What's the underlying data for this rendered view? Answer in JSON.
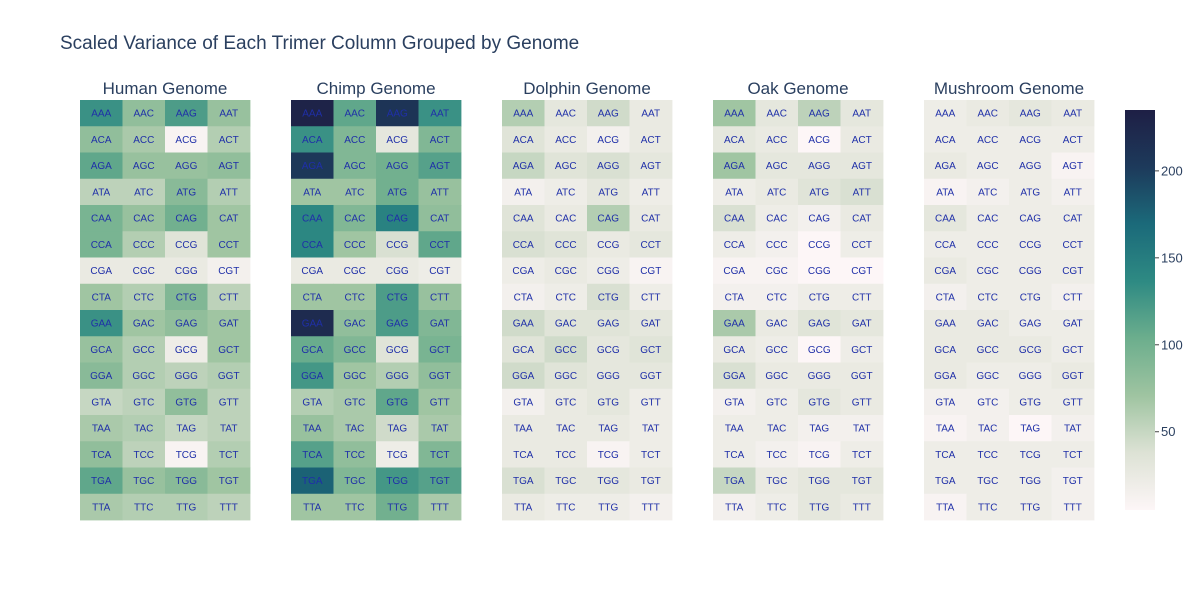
{
  "chart_data": {
    "type": "heatmap",
    "title": "Scaled Variance of Each Trimer Column Grouped by Genome",
    "colorscale": [
      "#fdf6f7",
      "#dde2d5",
      "#9fc4a1",
      "#6cae8d",
      "#2e8a83",
      "#1b6a7a",
      "#1d3a5b",
      "#1e1f45"
    ],
    "zrange": [
      5,
      235
    ],
    "colorbar_ticks": [
      50,
      100,
      150,
      200
    ],
    "columns": [
      "A",
      "C",
      "G",
      "T"
    ],
    "rows": [
      "AA",
      "AC",
      "AG",
      "AT",
      "CA",
      "CC",
      "CG",
      "CT",
      "GA",
      "GC",
      "GG",
      "GT",
      "TA",
      "TC",
      "TG",
      "TT"
    ],
    "panels": [
      {
        "title": "Human Genome",
        "labels": [
          [
            "AAA",
            "AAC",
            "AAG",
            "AAT"
          ],
          [
            "ACA",
            "ACC",
            "ACG",
            "ACT"
          ],
          [
            "AGA",
            "AGC",
            "AGG",
            "AGT"
          ],
          [
            "ATA",
            "ATC",
            "ATG",
            "ATT"
          ],
          [
            "CAA",
            "CAC",
            "CAG",
            "CAT"
          ],
          [
            "CCA",
            "CCC",
            "CCG",
            "CCT"
          ],
          [
            "CGA",
            "CGC",
            "CGG",
            "CGT"
          ],
          [
            "CTA",
            "CTC",
            "CTG",
            "CTT"
          ],
          [
            "GAA",
            "GAC",
            "GAG",
            "GAT"
          ],
          [
            "GCA",
            "GCC",
            "GCG",
            "GCT"
          ],
          [
            "GGA",
            "GGC",
            "GGG",
            "GGT"
          ],
          [
            "GTA",
            "GTC",
            "GTG",
            "GTT"
          ],
          [
            "TAA",
            "TAC",
            "TAG",
            "TAT"
          ],
          [
            "TCA",
            "TCC",
            "TCG",
            "TCT"
          ],
          [
            "TGA",
            "TGC",
            "TGG",
            "TGT"
          ],
          [
            "TTA",
            "TTC",
            "TTG",
            "TTT"
          ]
        ],
        "values": [
          [
            130,
            80,
            120,
            75
          ],
          [
            80,
            65,
            10,
            60
          ],
          [
            110,
            75,
            75,
            80
          ],
          [
            55,
            55,
            85,
            60
          ],
          [
            95,
            75,
            100,
            70
          ],
          [
            95,
            60,
            35,
            70
          ],
          [
            25,
            25,
            25,
            15
          ],
          [
            70,
            60,
            90,
            55
          ],
          [
            130,
            70,
            80,
            70
          ],
          [
            75,
            60,
            20,
            70
          ],
          [
            85,
            60,
            55,
            60
          ],
          [
            50,
            55,
            80,
            55
          ],
          [
            65,
            60,
            50,
            55
          ],
          [
            80,
            55,
            10,
            60
          ],
          [
            110,
            75,
            85,
            70
          ],
          [
            65,
            60,
            60,
            55
          ]
        ]
      },
      {
        "title": "Chimp Genome",
        "labels": [
          [
            "AAA",
            "AAC",
            "AAG",
            "AAT"
          ],
          [
            "ACA",
            "ACC",
            "ACG",
            "ACT"
          ],
          [
            "AGA",
            "AGC",
            "AGG",
            "AGT"
          ],
          [
            "ATA",
            "ATC",
            "ATG",
            "ATT"
          ],
          [
            "CAA",
            "CAC",
            "CAG",
            "CAT"
          ],
          [
            "CCA",
            "CCC",
            "CCG",
            "CCT"
          ],
          [
            "CGA",
            "CGC",
            "CGG",
            "CGT"
          ],
          [
            "CTA",
            "CTC",
            "CTG",
            "CTT"
          ],
          [
            "GAA",
            "GAC",
            "GAG",
            "GAT"
          ],
          [
            "GCA",
            "GCC",
            "GCG",
            "GCT"
          ],
          [
            "GGA",
            "GGC",
            "GGG",
            "GGT"
          ],
          [
            "GTA",
            "GTC",
            "GTG",
            "GTT"
          ],
          [
            "TAA",
            "TAC",
            "TAG",
            "TAT"
          ],
          [
            "TCA",
            "TCC",
            "TCG",
            "TCT"
          ],
          [
            "TGA",
            "TGC",
            "TGG",
            "TGT"
          ],
          [
            "TTA",
            "TTC",
            "TTG",
            "TTT"
          ]
        ],
        "values": [
          [
            230,
            110,
            210,
            130
          ],
          [
            130,
            90,
            30,
            90
          ],
          [
            205,
            90,
            100,
            115
          ],
          [
            70,
            70,
            100,
            75
          ],
          [
            140,
            90,
            145,
            80
          ],
          [
            140,
            70,
            40,
            110
          ],
          [
            25,
            25,
            25,
            20
          ],
          [
            70,
            70,
            120,
            75
          ],
          [
            220,
            80,
            120,
            90
          ],
          [
            105,
            90,
            35,
            95
          ],
          [
            125,
            70,
            60,
            80
          ],
          [
            60,
            65,
            110,
            70
          ],
          [
            75,
            65,
            45,
            65
          ],
          [
            115,
            80,
            20,
            90
          ],
          [
            175,
            90,
            125,
            115
          ],
          [
            70,
            70,
            100,
            65
          ]
        ]
      },
      {
        "title": "Dolphin Genome",
        "labels": [
          [
            "AAA",
            "AAC",
            "AAG",
            "AAT"
          ],
          [
            "ACA",
            "ACC",
            "ACG",
            "ACT"
          ],
          [
            "AGA",
            "AGC",
            "AGG",
            "AGT"
          ],
          [
            "ATA",
            "ATC",
            "ATG",
            "ATT"
          ],
          [
            "CAA",
            "CAC",
            "CAG",
            "CAT"
          ],
          [
            "CCA",
            "CCC",
            "CCG",
            "CCT"
          ],
          [
            "CGA",
            "CGC",
            "CGG",
            "CGT"
          ],
          [
            "CTA",
            "CTC",
            "CTG",
            "CTT"
          ],
          [
            "GAA",
            "GAC",
            "GAG",
            "GAT"
          ],
          [
            "GCA",
            "GCC",
            "GCG",
            "GCT"
          ],
          [
            "GGA",
            "GGC",
            "GGG",
            "GGT"
          ],
          [
            "GTA",
            "GTC",
            "GTG",
            "GTT"
          ],
          [
            "TAA",
            "TAC",
            "TAG",
            "TAT"
          ],
          [
            "TCA",
            "TCC",
            "TCG",
            "TCT"
          ],
          [
            "TGA",
            "TGC",
            "TGG",
            "TGT"
          ],
          [
            "TTA",
            "TTC",
            "TTG",
            "TTT"
          ]
        ],
        "values": [
          [
            60,
            30,
            45,
            25
          ],
          [
            35,
            25,
            15,
            25
          ],
          [
            50,
            35,
            40,
            30
          ],
          [
            15,
            20,
            30,
            20
          ],
          [
            35,
            25,
            60,
            25
          ],
          [
            40,
            35,
            25,
            30
          ],
          [
            20,
            25,
            20,
            10
          ],
          [
            15,
            20,
            40,
            20
          ],
          [
            45,
            35,
            35,
            30
          ],
          [
            35,
            45,
            30,
            35
          ],
          [
            45,
            35,
            30,
            30
          ],
          [
            15,
            25,
            30,
            20
          ],
          [
            25,
            25,
            25,
            20
          ],
          [
            25,
            25,
            10,
            20
          ],
          [
            40,
            30,
            30,
            25
          ],
          [
            25,
            20,
            20,
            15
          ]
        ]
      },
      {
        "title": "Oak Genome",
        "labels": [
          [
            "AAA",
            "AAC",
            "AAG",
            "AAT"
          ],
          [
            "ACA",
            "ACC",
            "ACG",
            "ACT"
          ],
          [
            "AGA",
            "AGC",
            "AGG",
            "AGT"
          ],
          [
            "ATA",
            "ATC",
            "ATG",
            "ATT"
          ],
          [
            "CAA",
            "CAC",
            "CAG",
            "CAT"
          ],
          [
            "CCA",
            "CCC",
            "CCG",
            "CCT"
          ],
          [
            "CGA",
            "CGC",
            "CGG",
            "CGT"
          ],
          [
            "CTA",
            "CTC",
            "CTG",
            "CTT"
          ],
          [
            "GAA",
            "GAC",
            "GAG",
            "GAT"
          ],
          [
            "GCA",
            "GCC",
            "GCG",
            "GCT"
          ],
          [
            "GGA",
            "GGC",
            "GGG",
            "GGT"
          ],
          [
            "GTA",
            "GTC",
            "GTG",
            "GTT"
          ],
          [
            "TAA",
            "TAC",
            "TAG",
            "TAT"
          ],
          [
            "TCA",
            "TCC",
            "TCG",
            "TCT"
          ],
          [
            "TGA",
            "TGC",
            "TGG",
            "TGT"
          ],
          [
            "TTA",
            "TTC",
            "TTG",
            "TTT"
          ]
        ],
        "values": [
          [
            70,
            30,
            55,
            30
          ],
          [
            30,
            25,
            5,
            25
          ],
          [
            70,
            30,
            30,
            30
          ],
          [
            20,
            25,
            35,
            40
          ],
          [
            40,
            20,
            15,
            25
          ],
          [
            20,
            15,
            5,
            20
          ],
          [
            10,
            10,
            5,
            5
          ],
          [
            15,
            15,
            20,
            20
          ],
          [
            65,
            25,
            35,
            30
          ],
          [
            25,
            20,
            5,
            20
          ],
          [
            40,
            25,
            25,
            25
          ],
          [
            15,
            20,
            30,
            25
          ],
          [
            20,
            20,
            15,
            15
          ],
          [
            20,
            15,
            10,
            20
          ],
          [
            50,
            25,
            30,
            30
          ],
          [
            15,
            20,
            30,
            25
          ]
        ]
      },
      {
        "title": "Mushroom Genome",
        "labels": [
          [
            "AAA",
            "AAC",
            "AAG",
            "AAT"
          ],
          [
            "ACA",
            "ACC",
            "ACG",
            "ACT"
          ],
          [
            "AGA",
            "AGC",
            "AGG",
            "AGT"
          ],
          [
            "ATA",
            "ATC",
            "ATG",
            "ATT"
          ],
          [
            "CAA",
            "CAC",
            "CAG",
            "CAT"
          ],
          [
            "CCA",
            "CCC",
            "CCG",
            "CCT"
          ],
          [
            "CGA",
            "CGC",
            "CGG",
            "CGT"
          ],
          [
            "CTA",
            "CTC",
            "CTG",
            "CTT"
          ],
          [
            "GAA",
            "GAC",
            "GAG",
            "GAT"
          ],
          [
            "GCA",
            "GCC",
            "GCG",
            "GCT"
          ],
          [
            "GGA",
            "GGC",
            "GGG",
            "GGT"
          ],
          [
            "GTA",
            "GTC",
            "GTG",
            "GTT"
          ],
          [
            "TAA",
            "TAC",
            "TAG",
            "TAT"
          ],
          [
            "TCA",
            "TCC",
            "TCG",
            "TCT"
          ],
          [
            "TGA",
            "TGC",
            "TGG",
            "TGT"
          ],
          [
            "TTA",
            "TTC",
            "TTG",
            "TTT"
          ]
        ],
        "values": [
          [
            20,
            25,
            30,
            25
          ],
          [
            20,
            20,
            20,
            20
          ],
          [
            25,
            20,
            20,
            10
          ],
          [
            10,
            15,
            20,
            15
          ],
          [
            30,
            20,
            20,
            20
          ],
          [
            20,
            20,
            20,
            20
          ],
          [
            25,
            20,
            20,
            20
          ],
          [
            15,
            20,
            20,
            15
          ],
          [
            25,
            25,
            20,
            20
          ],
          [
            25,
            25,
            25,
            20
          ],
          [
            25,
            20,
            20,
            25
          ],
          [
            15,
            15,
            20,
            20
          ],
          [
            10,
            15,
            5,
            15
          ],
          [
            20,
            20,
            20,
            20
          ],
          [
            20,
            20,
            20,
            15
          ],
          [
            10,
            20,
            20,
            15
          ]
        ]
      }
    ]
  }
}
